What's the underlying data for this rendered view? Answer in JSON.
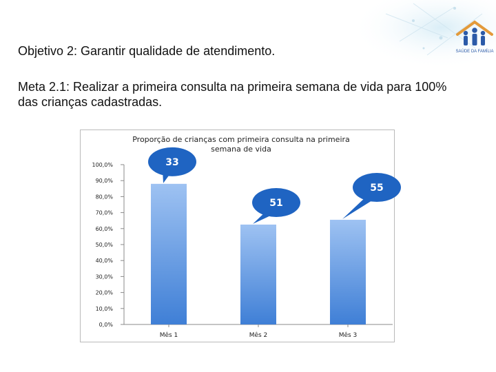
{
  "slide": {
    "objective": "Objetivo 2: Garantir qualidade de atendimento.",
    "goal": "Meta 2.1: Realizar a primeira consulta na primeira semana de vida para 100% das crianças cadastradas.",
    "logo_caption": "SAÚDE DA FAMÍLIA",
    "colors": {
      "bar_top": "#9ec2f2",
      "bar_bottom": "#3f7fd6",
      "callout": "#1f64c2",
      "grid_axis": "#888888"
    }
  },
  "chart_data": {
    "type": "bar",
    "title": "Proporção de crianças com primeira consulta na primeira semana de vida",
    "categories": [
      "Mês 1",
      "Mês 2",
      "Mês 3"
    ],
    "values": [
      88.0,
      62.5,
      65.5
    ],
    "callouts": [
      "33",
      "51",
      "55"
    ],
    "ylim": [
      0,
      100
    ],
    "yticks": [
      "0,0%",
      "10,0%",
      "20,0%",
      "30,0%",
      "40,0%",
      "50,0%",
      "60,0%",
      "70,0%",
      "80,0%",
      "90,0%",
      "100,0%"
    ],
    "xlabel": "",
    "ylabel": "",
    "grid": false,
    "legend": "none"
  }
}
